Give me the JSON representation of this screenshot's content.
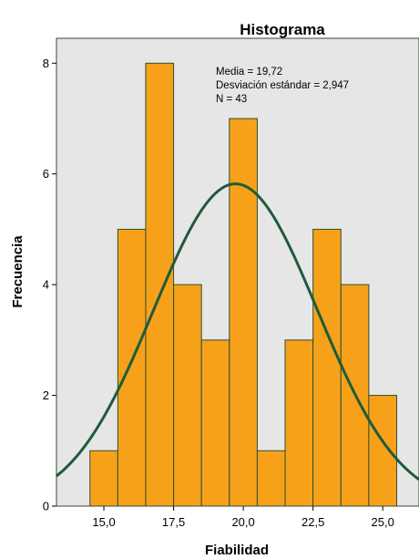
{
  "chart_data": {
    "type": "bar",
    "subtype": "histogram",
    "title": "Histograma",
    "xlabel": "Fiabilidad",
    "ylabel": "Frecuencia",
    "bin_width": 1,
    "bin_starts": [
      14.5,
      15.5,
      16.5,
      17.5,
      18.5,
      19.5,
      20.5,
      21.5,
      22.5,
      23.5,
      24.5
    ],
    "values": [
      1,
      5,
      8,
      4,
      3,
      7,
      1,
      3,
      5,
      4,
      2
    ],
    "xlim": [
      13.3,
      26.3
    ],
    "ylim": [
      0,
      8.45
    ],
    "x_ticks": [
      15.0,
      17.5,
      20.0,
      22.5,
      25.0
    ],
    "x_tick_labels": [
      "15,0",
      "17,5",
      "20,0",
      "22,5",
      "25,0"
    ],
    "y_ticks": [
      0,
      2,
      4,
      6,
      8
    ],
    "y_tick_labels": [
      "0",
      "2",
      "4",
      "6",
      "8"
    ],
    "normal_curve": {
      "mean": 19.72,
      "sd": 2.947,
      "n": 43,
      "color": "#1e5b3a"
    },
    "stats": [
      "Media = 19,72",
      "Desviación estándar = 2,947",
      "N = 43"
    ],
    "grid": false,
    "colors": {
      "bar_fill": "#f7a11a",
      "bar_stroke": "#2f4f2f",
      "plot_background": "#e6e6e6",
      "frame": "#2f4f2f"
    }
  }
}
